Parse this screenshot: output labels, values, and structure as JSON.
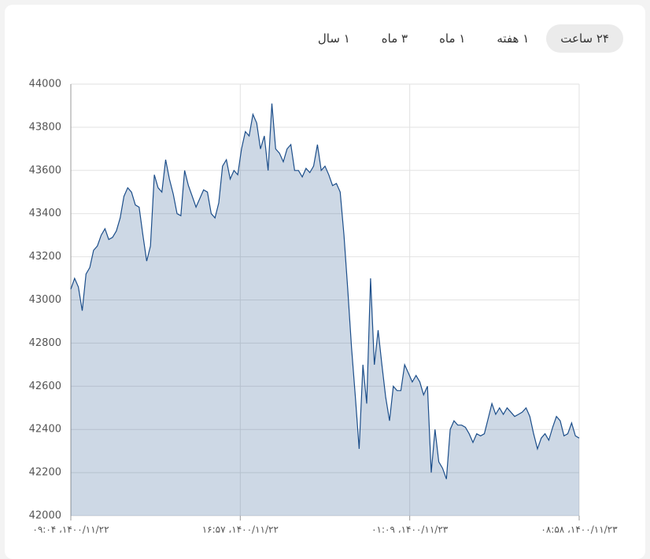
{
  "tabs": [
    "۲۴ ساعت",
    "۱ هفته",
    "۱ ماه",
    "۳ ماه",
    "۱ سال"
  ],
  "chart_data": {
    "type": "area",
    "x_labels": [
      "۰۹:۰۴ ،۱۴۰۰/۱۱/۲۲",
      "۱۶:۵۷ ،۱۴۰۰/۱۱/۲۲",
      "۰۱:۰۹ ،۱۴۰۰/۱۱/۲۳",
      "۰۸:۵۸ ،۱۴۰۰/۱۱/۲۳"
    ],
    "series": [
      {
        "color": "#1c4e8a",
        "values": [
          43050,
          43100,
          43060,
          42950,
          43120,
          43150,
          43230,
          43250,
          43300,
          43330,
          43280,
          43290,
          43320,
          43380,
          43480,
          43520,
          43500,
          43440,
          43430,
          43300,
          43180,
          43250,
          43580,
          43520,
          43500,
          43650,
          43560,
          43490,
          43400,
          43390,
          43600,
          43530,
          43480,
          43430,
          43470,
          43510,
          43500,
          43400,
          43380,
          43450,
          43620,
          43650,
          43560,
          43600,
          43580,
          43700,
          43780,
          43760,
          43860,
          43820,
          43700,
          43760,
          43600,
          43910,
          43700,
          43680,
          43640,
          43700,
          43720,
          43600,
          43600,
          43570,
          43610,
          43590,
          43620,
          43720,
          43600,
          43620,
          43580,
          43530,
          43540,
          43500,
          43300,
          43050,
          42780,
          42550,
          42310,
          42700,
          42520,
          43100,
          42700,
          42860,
          42700,
          42550,
          42440,
          42600,
          42580,
          42580,
          42700,
          42660,
          42620,
          42650,
          42620,
          42560,
          42600,
          42200,
          42400,
          42250,
          42220,
          42170,
          42400,
          42440,
          42420,
          42420,
          42410,
          42380,
          42340,
          42380,
          42370,
          42380,
          42450,
          42520,
          42470,
          42500,
          42470,
          42500,
          42480,
          42460,
          42470,
          42480,
          42500,
          42460,
          42380,
          42310,
          42360,
          42380,
          42350,
          42410,
          42460,
          42440,
          42370,
          42380,
          42430,
          42370,
          42360
        ]
      }
    ],
    "ylim": [
      42000,
      44000
    ],
    "yticks": [
      42000,
      42200,
      42400,
      42600,
      42800,
      43000,
      43200,
      43400,
      43600,
      43800,
      44000
    ],
    "grid": true
  }
}
